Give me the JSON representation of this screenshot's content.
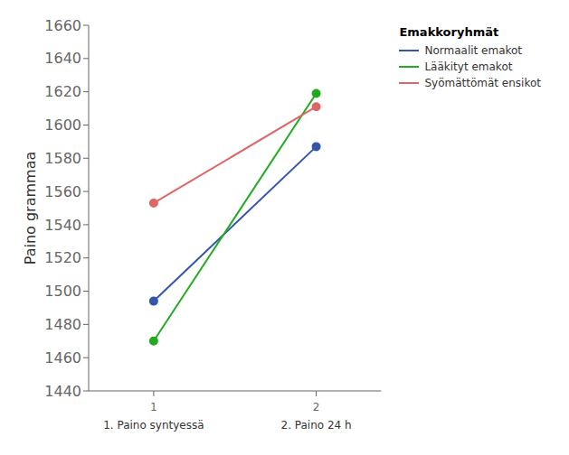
{
  "chart_data": {
    "type": "line",
    "x": [
      1,
      2
    ],
    "series": [
      {
        "name": "Normaalit emakot",
        "color": "#3355aa",
        "values": [
          1494,
          1587
        ]
      },
      {
        "name": "Lääkityt emakot",
        "color": "#22aa22",
        "values": [
          1470,
          1619
        ]
      },
      {
        "name": "Syömättömät ensikot",
        "color": "#dd6666",
        "values": [
          1553,
          1611
        ]
      }
    ],
    "ylabel": "Paino grammaa",
    "annotations": [
      "1. Paino syntyessä",
      "2. Paino 24 h"
    ],
    "legend_title": "Emakkoryhmät",
    "legend": "right",
    "xlim": [
      0.6,
      2.4
    ],
    "xticks": [
      1,
      2
    ],
    "ylim": [
      1440,
      1660
    ],
    "yticks": [
      1440,
      1460,
      1480,
      1500,
      1520,
      1540,
      1560,
      1580,
      1600,
      1620,
      1640,
      1660
    ],
    "grid": false,
    "marker": "circle"
  }
}
